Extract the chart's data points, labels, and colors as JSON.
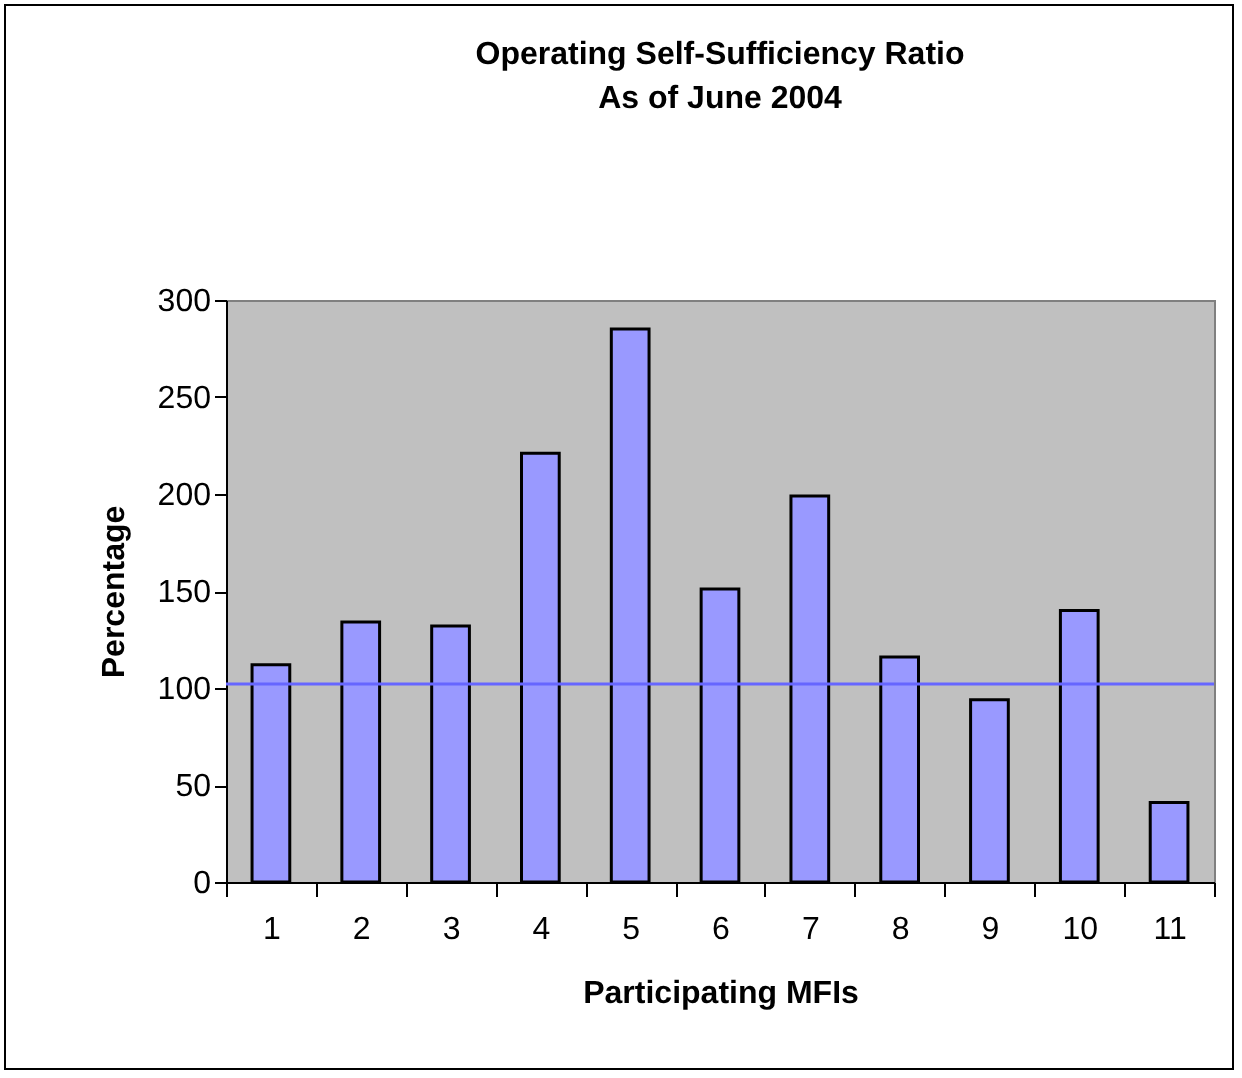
{
  "chart_data": {
    "type": "bar",
    "title": "Operating Self-Sufficiency Ratio",
    "subtitle": "As of June 2004",
    "xlabel": "Participating MFIs",
    "ylabel": "Percentage",
    "categories": [
      "1",
      "2",
      "3",
      "4",
      "5",
      "6",
      "7",
      "8",
      "9",
      "10",
      "11"
    ],
    "values": [
      112,
      134,
      132,
      221,
      285,
      151,
      199,
      116,
      94,
      140,
      41
    ],
    "color": "#9999ff",
    "ylim": [
      0,
      300
    ],
    "yticks": [
      0,
      50,
      100,
      150,
      200,
      250,
      300
    ],
    "grid": false,
    "ref_lines": [
      {
        "axis": "y",
        "value": 102,
        "color": "#6666ff"
      }
    ]
  }
}
